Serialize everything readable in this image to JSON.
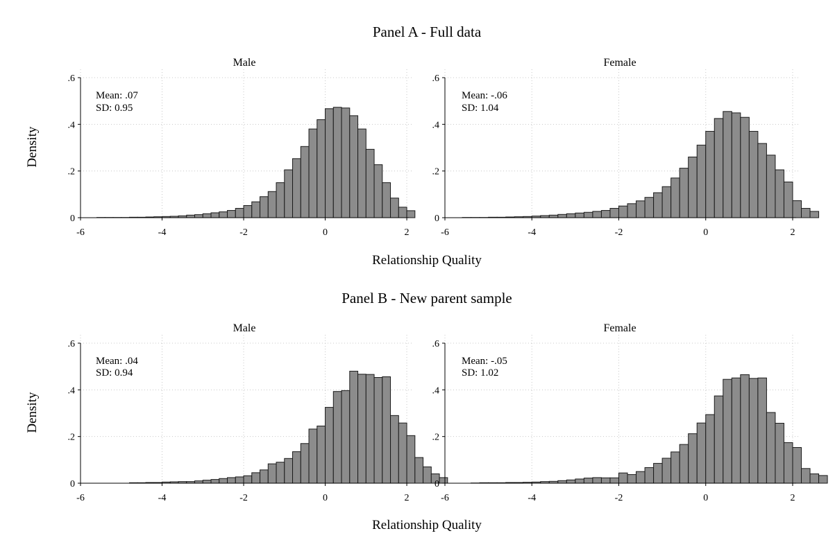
{
  "chart_data": {
    "type": "histogram",
    "panels": [
      {
        "title": "Panel A - Full data",
        "xlabel": "Relationship Quality",
        "ylabel": "Density",
        "charts": [
          {
            "subtitle": "Male",
            "stats": {
              "mean": "Mean: .07",
              "sd": "SD: 0.95"
            },
            "xlim": [
              -6,
              2.05
            ],
            "ylim": [
              0,
              0.6
            ],
            "x_ticks": [
              -6,
              -4,
              -2,
              0,
              2
            ],
            "x_tick_labels": [
              "-6",
              "-4",
              "-2",
              "0",
              "2"
            ],
            "y_ticks": [
              0,
              0.2,
              0.4,
              0.6
            ],
            "y_tick_labels": [
              "0",
              ".2",
              ".4",
              ".6"
            ],
            "grid": true,
            "bin_start": -5.6,
            "bin_width": 0.2,
            "densities": [
              0.001,
              0.001,
              0.001,
              0.001,
              0.002,
              0.002,
              0.003,
              0.004,
              0.005,
              0.006,
              0.008,
              0.011,
              0.013,
              0.017,
              0.021,
              0.025,
              0.031,
              0.04,
              0.052,
              0.068,
              0.09,
              0.112,
              0.15,
              0.205,
              0.253,
              0.305,
              0.38,
              0.42,
              0.467,
              0.473,
              0.47,
              0.437,
              0.38,
              0.293,
              0.227,
              0.15,
              0.084,
              0.045,
              0.03
            ]
          },
          {
            "subtitle": "Female",
            "stats": {
              "mean": "Mean: -.06",
              "sd": "SD: 1.04"
            },
            "xlim": [
              -6,
              2.08
            ],
            "ylim": [
              0,
              0.6
            ],
            "x_ticks": [
              -6,
              -4,
              -2,
              0,
              2
            ],
            "x_tick_labels": [
              "-6",
              "-4",
              "-2",
              "0",
              "2"
            ],
            "y_ticks": [
              0,
              0.2,
              0.4,
              0.6
            ],
            "y_tick_labels": [
              "0",
              ".2",
              ".4",
              ".6"
            ],
            "grid": true,
            "bin_start": -5.6,
            "bin_width": 0.2,
            "densities": [
              0.001,
              0.001,
              0.001,
              0.002,
              0.002,
              0.003,
              0.004,
              0.005,
              0.007,
              0.009,
              0.011,
              0.014,
              0.017,
              0.02,
              0.023,
              0.027,
              0.031,
              0.04,
              0.05,
              0.06,
              0.072,
              0.087,
              0.107,
              0.133,
              0.17,
              0.212,
              0.26,
              0.311,
              0.37,
              0.425,
              0.455,
              0.449,
              0.43,
              0.37,
              0.318,
              0.268,
              0.205,
              0.153,
              0.073,
              0.04,
              0.027
            ]
          }
        ]
      },
      {
        "title": "Panel B - New parent sample",
        "xlabel": "Relationship Quality",
        "ylabel": "Density",
        "charts": [
          {
            "subtitle": "Male",
            "stats": {
              "mean": "Mean: .04",
              "sd": "SD: 0.94"
            },
            "xlim": [
              -6,
              2.05
            ],
            "ylim": [
              0,
              0.6
            ],
            "x_ticks": [
              -6,
              -4,
              -2,
              0,
              2
            ],
            "x_tick_labels": [
              "-6",
              "-4",
              "-2",
              "0",
              "2"
            ],
            "y_ticks": [
              0,
              0.2,
              0.4,
              0.6
            ],
            "y_tick_labels": [
              "0",
              ".2",
              ".4",
              ".6"
            ],
            "grid": true,
            "bin_start": -4.8,
            "bin_width": 0.2,
            "densities": [
              0.002,
              0.002,
              0.003,
              0.003,
              0.005,
              0.006,
              0.007,
              0.007,
              0.01,
              0.013,
              0.016,
              0.02,
              0.024,
              0.027,
              0.032,
              0.045,
              0.057,
              0.083,
              0.09,
              0.106,
              0.135,
              0.17,
              0.232,
              0.245,
              0.325,
              0.393,
              0.397,
              0.48,
              0.467,
              0.466,
              0.453,
              0.456,
              0.29,
              0.258,
              0.204,
              0.11,
              0.07,
              0.04,
              0.024
            ]
          },
          {
            "subtitle": "Female",
            "stats": {
              "mean": "Mean: -.05",
              "sd": "SD: 1.02"
            },
            "xlim": [
              -6,
              2.08
            ],
            "ylim": [
              0,
              0.6
            ],
            "x_ticks": [
              -6,
              -4,
              -2,
              0,
              2
            ],
            "x_tick_labels": [
              "-6",
              "-4",
              "-2",
              "0",
              "2"
            ],
            "y_ticks": [
              0,
              0.2,
              0.4,
              0.6
            ],
            "y_tick_labels": [
              "0",
              ".2",
              ".4",
              ".6"
            ],
            "grid": true,
            "bin_start": -5.4,
            "bin_width": 0.2,
            "densities": [
              0.001,
              0.002,
              0.002,
              0.002,
              0.003,
              0.003,
              0.004,
              0.005,
              0.007,
              0.008,
              0.011,
              0.014,
              0.018,
              0.022,
              0.024,
              0.023,
              0.023,
              0.044,
              0.037,
              0.05,
              0.067,
              0.085,
              0.107,
              0.134,
              0.166,
              0.212,
              0.258,
              0.294,
              0.374,
              0.445,
              0.451,
              0.465,
              0.449,
              0.451,
              0.303,
              0.257,
              0.174,
              0.153,
              0.063,
              0.04,
              0.033
            ]
          }
        ]
      }
    ]
  },
  "colors": {
    "bar_fill": "#8c8c8c",
    "bar_stroke": "#1a1a1a",
    "axis": "#000000",
    "grid": "#c8c8c8"
  }
}
